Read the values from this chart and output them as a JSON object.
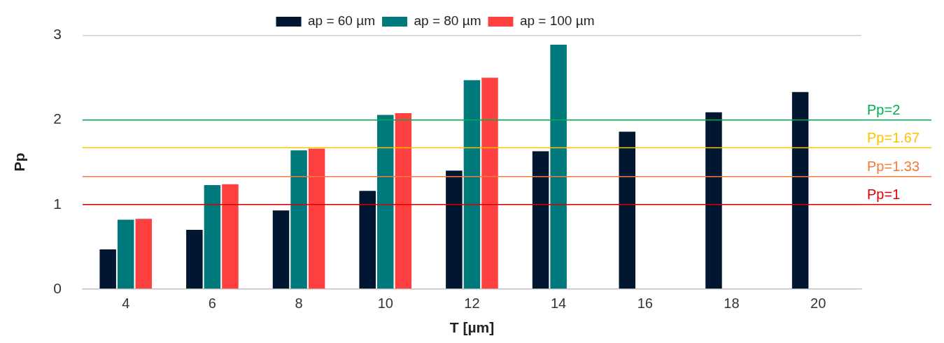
{
  "chart_data": {
    "type": "bar",
    "xlabel": "T [µm]",
    "ylabel": "Pp",
    "categories": [
      "4",
      "6",
      "8",
      "10",
      "12",
      "14",
      "16",
      "18",
      "20"
    ],
    "series": [
      {
        "name": "ap = 60 µm",
        "color": "#001631",
        "values": [
          0.47,
          0.7,
          0.93,
          1.16,
          1.4,
          1.63,
          1.86,
          2.09,
          2.33
        ]
      },
      {
        "name": "ap = 80 µm",
        "color": "#00797c",
        "values": [
          0.82,
          1.23,
          1.64,
          2.06,
          2.47,
          2.89,
          null,
          null,
          null
        ]
      },
      {
        "name": "ap = 100 µm",
        "color": "#ff4040",
        "values": [
          0.83,
          1.24,
          1.66,
          2.08,
          2.5,
          null,
          null,
          null,
          null
        ]
      }
    ],
    "ylim": [
      0,
      3
    ],
    "yticks": [
      0,
      1,
      2,
      3
    ],
    "grid": "y",
    "legend": "top",
    "ref_lines": [
      {
        "axis": "y",
        "value": 2,
        "label": "Pp=2",
        "color": "#00b050"
      },
      {
        "axis": "y",
        "value": 1.67,
        "label": "Pp=1.67",
        "color": "#ffc000"
      },
      {
        "axis": "y",
        "value": 1.33,
        "label": "Pp=1.33",
        "color": "#f47b3a"
      },
      {
        "axis": "y",
        "value": 1,
        "label": "Pp=1",
        "color": "#e00000"
      }
    ]
  }
}
